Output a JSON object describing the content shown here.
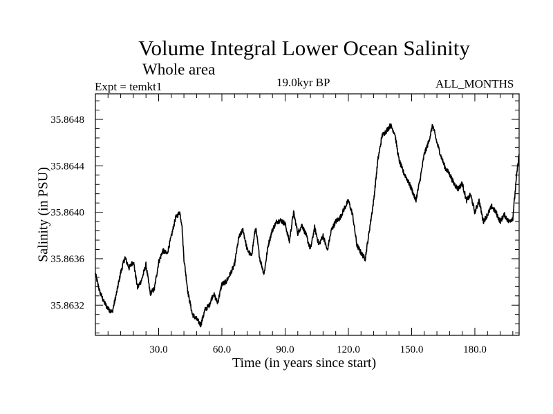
{
  "chart_data": {
    "type": "line",
    "title": "Volume Integral Lower Ocean Salinity",
    "subtitle": "Whole area",
    "experiment": "Expt = temkt1",
    "epoch": "19.0kyr BP",
    "months": "ALL_MONTHS",
    "xlabel": "Time (in years since start)",
    "ylabel": "Salinity (in PSU)",
    "xlim": [
      0,
      201
    ],
    "ylim": [
      35.86294,
      35.86502
    ],
    "xticks": [
      30,
      60,
      90,
      120,
      150,
      180
    ],
    "xtick_labels": [
      "30.0",
      "60.0",
      "90.0",
      "120.0",
      "150.0",
      "180.0"
    ],
    "yticks": [
      35.8632,
      35.8636,
      35.864,
      35.8644,
      35.8648
    ],
    "ytick_labels": [
      "35.8632",
      "35.8636",
      "35.8640",
      "35.8644",
      "35.8648"
    ],
    "grid": false,
    "series": [
      {
        "name": "salinity",
        "x": [
          0,
          2,
          4,
          6,
          8,
          10,
          12,
          14,
          16,
          18,
          20,
          22,
          24,
          26,
          28,
          30,
          32,
          34,
          36,
          38,
          40,
          41,
          42,
          44,
          46,
          48,
          50,
          52,
          54,
          56,
          58,
          60,
          62,
          64,
          66,
          68,
          70,
          72,
          74,
          76,
          78,
          80,
          82,
          84,
          86,
          88,
          90,
          92,
          94,
          96,
          98,
          100,
          102,
          104,
          106,
          108,
          110,
          112,
          114,
          116,
          118,
          120,
          122,
          124,
          126,
          128,
          130,
          132,
          134,
          136,
          138,
          140,
          142,
          144,
          146,
          148,
          150,
          152,
          154,
          156,
          158,
          160,
          162,
          164,
          166,
          168,
          170,
          172,
          174,
          176,
          178,
          180,
          182,
          184,
          186,
          188,
          190,
          192,
          194,
          196,
          198,
          200,
          201
        ],
        "y": [
          35.86347,
          35.86332,
          35.86323,
          35.86317,
          35.86314,
          35.8633,
          35.86348,
          35.86361,
          35.86352,
          35.86358,
          35.86335,
          35.86342,
          35.86355,
          35.8633,
          35.86334,
          35.86357,
          35.86367,
          35.86364,
          35.86379,
          35.86395,
          35.864,
          35.8639,
          35.8636,
          35.8633,
          35.86312,
          35.86308,
          35.86303,
          35.86316,
          35.8632,
          35.8633,
          35.86322,
          35.86338,
          35.8634,
          35.86347,
          35.86355,
          35.86378,
          35.86385,
          35.86368,
          35.86362,
          35.86387,
          35.8636,
          35.86347,
          35.86372,
          35.86385,
          35.86392,
          35.86393,
          35.8639,
          35.86375,
          35.864,
          35.86382,
          35.86389,
          35.8638,
          35.86368,
          35.86387,
          35.86372,
          35.8638,
          35.86367,
          35.86385,
          35.86392,
          35.86395,
          35.86403,
          35.8641,
          35.86398,
          35.86372,
          35.86365,
          35.8636,
          35.86385,
          35.8641,
          35.86445,
          35.86466,
          35.8647,
          35.86475,
          35.86468,
          35.86445,
          35.86435,
          35.86428,
          35.8642,
          35.8641,
          35.86428,
          35.8645,
          35.8646,
          35.86475,
          35.8646,
          35.86448,
          35.86438,
          35.86433,
          35.86425,
          35.8642,
          35.86425,
          35.8641,
          35.86415,
          35.864,
          35.8641,
          35.86392,
          35.86398,
          35.86405,
          35.864,
          35.86392,
          35.86398,
          35.86392,
          35.86395,
          35.86435,
          35.8645
        ]
      }
    ]
  }
}
